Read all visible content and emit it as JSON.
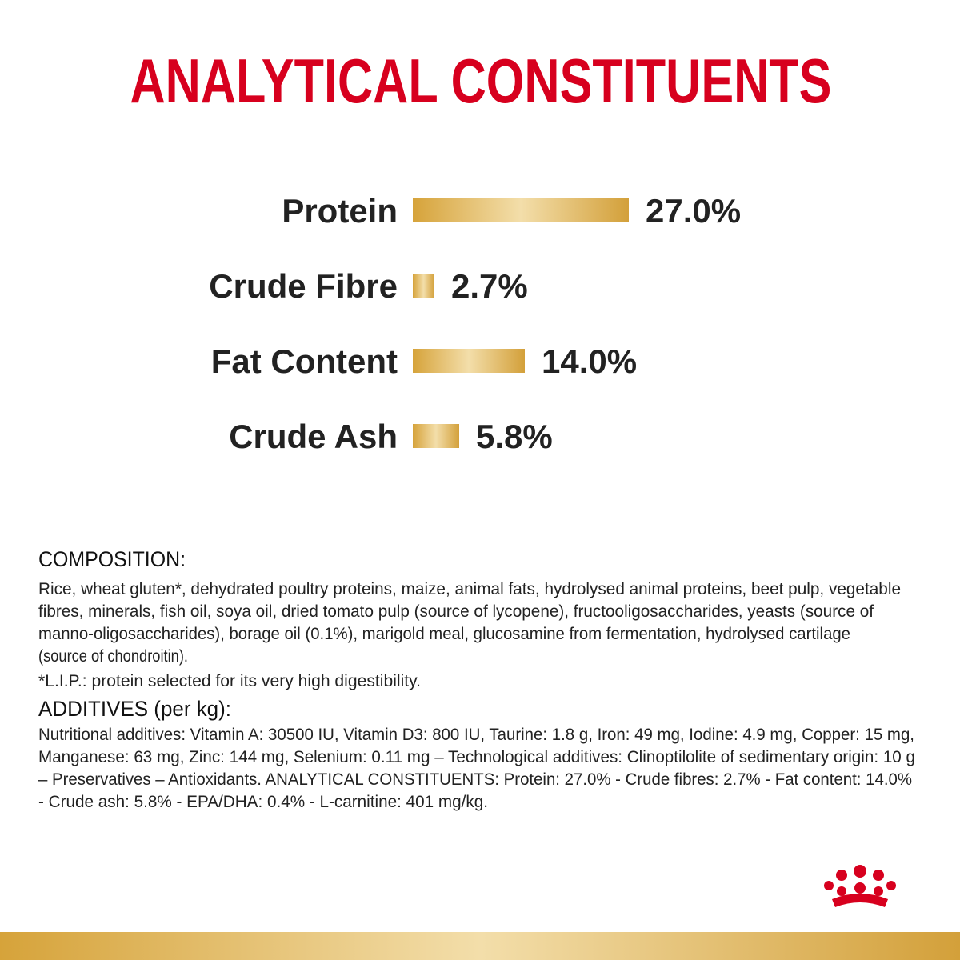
{
  "chart_data": {
    "type": "bar",
    "orientation": "horizontal",
    "title": "ANALYTICAL CONSTITUENTS",
    "categories": [
      "Protein",
      "Crude Fibre",
      "Fat Content",
      "Crude Ash"
    ],
    "values": [
      27.0,
      2.7,
      14.0,
      5.8
    ],
    "value_labels": [
      "27.0%",
      "2.7%",
      "14.0%",
      "5.8%"
    ]
  },
  "composition": {
    "heading": "COMPOSITION:",
    "lines": [
      "Rice, wheat gluten*, dehydrated poultry proteins, maize, animal fats, hydrolysed animal proteins, beet pulp, vegetable",
      "fibres, minerals, fish oil, soya oil, dried tomato pulp (source of lycopene), fructooligosaccharides, yeasts (source of",
      "manno-oligosaccharides), borage oil (0.1%), marigold meal, glucosamine from fermentation, hydrolysed cartilage",
      "(source of chondroitin)."
    ],
    "note": "*L.I.P.: protein selected for its very high digestibility."
  },
  "additives": {
    "heading": "ADDITIVES (per kg):",
    "lines": [
      "Nutritional additives: Vitamin A: 30500 IU, Vitamin D3: 800 IU, Taurine: 1.8 g, Iron: 49 mg, Iodine: 4.9 mg, Copper: 15 mg,",
      "Manganese: 63 mg, Zinc: 144 mg, Selenium: 0.11 mg – Technological additives: Clinoptilolite of sedimentary origin: 10 g",
      "– Preservatives – Antioxidants. ANALYTICAL CONSTITUENTS: Protein: 27.0% - Crude fibres:  2.7% - Fat content: 14.0%",
      "- Crude ash: 5.8% - EPA/DHA: 0.4% - L-carnitine: 401 mg/kg."
    ]
  }
}
